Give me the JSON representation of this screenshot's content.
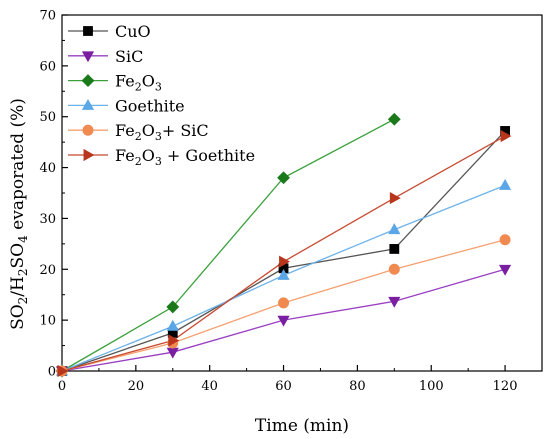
{
  "chart_data": {
    "type": "line",
    "title": "",
    "xlabel": "Time (min)",
    "ylabel": "SO₂/H₂SO₄ evaporated (%)",
    "xlim": [
      0,
      130
    ],
    "ylim": [
      0,
      70
    ],
    "xticks": [
      0,
      20,
      40,
      60,
      80,
      100,
      120
    ],
    "yticks": [
      0,
      10,
      20,
      30,
      40,
      50,
      60,
      70
    ],
    "grid": false,
    "legend_position": "top-left",
    "series": [
      {
        "name": "CuO",
        "legend_main": "CuO",
        "marker": "square",
        "color": "#000000",
        "line_color": "#555555",
        "x": [
          0,
          30,
          60,
          90,
          120
        ],
        "y": [
          0,
          7.5,
          20.2,
          24.0,
          47.2
        ]
      },
      {
        "name": "SiC",
        "legend_main": "SiC",
        "marker": "triangle-down",
        "color": "#7a1fa2",
        "line_color": "#9a3fc2",
        "x": [
          0,
          30,
          60,
          90,
          120
        ],
        "y": [
          0,
          3.7,
          10.0,
          13.7,
          20.0
        ]
      },
      {
        "name": "Fe2O3",
        "legend_main": "Fe",
        "legend_sub1": "2",
        "legend_mid": "O",
        "legend_sub2": "3",
        "legend_tail": "",
        "marker": "diamond",
        "color": "#1a7a1a",
        "line_color": "#3aa03a",
        "x": [
          0,
          30,
          60,
          90
        ],
        "y": [
          0,
          12.6,
          38.0,
          49.5
        ]
      },
      {
        "name": "Goethite",
        "legend_main": "Goethite",
        "marker": "triangle-up",
        "color": "#5aa6e6",
        "line_color": "#6db3ea",
        "x": [
          0,
          30,
          60,
          90,
          120
        ],
        "y": [
          0,
          8.8,
          18.8,
          27.8,
          36.5
        ]
      },
      {
        "name": "Fe2O3+ SiC",
        "legend_main": "Fe",
        "legend_sub1": "2",
        "legend_mid": "O",
        "legend_sub2": "3",
        "legend_tail": "+ SiC",
        "marker": "circle",
        "color": "#f08a50",
        "line_color": "#f4a070",
        "x": [
          0,
          30,
          60,
          90,
          120
        ],
        "y": [
          0,
          5.5,
          13.4,
          20.0,
          25.8
        ]
      },
      {
        "name": "Fe2O3 + Goethite",
        "legend_main": "Fe",
        "legend_sub1": "2",
        "legend_mid": "O",
        "legend_sub2": "3",
        "legend_tail": " + Goethite",
        "marker": "triangle-right",
        "color": "#b8361c",
        "line_color": "#c84a30",
        "x": [
          0,
          30,
          60,
          90,
          120
        ],
        "y": [
          0,
          6.0,
          21.5,
          34.0,
          46.2
        ]
      }
    ]
  }
}
